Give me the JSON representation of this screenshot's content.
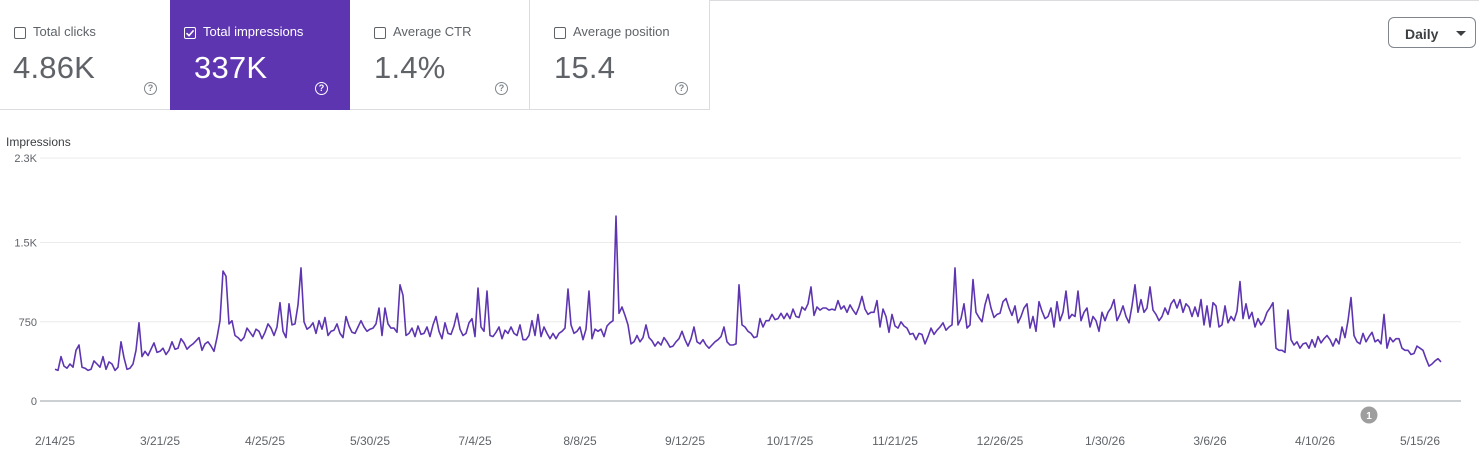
{
  "metrics": [
    {
      "label": "Total clicks",
      "value": "4.86K",
      "checked": false
    },
    {
      "label": "Total impressions",
      "value": "337K",
      "checked": true
    },
    {
      "label": "Average CTR",
      "value": "1.4%",
      "checked": false
    },
    {
      "label": "Average position",
      "value": "15.4",
      "checked": false
    }
  ],
  "help_glyph": "?",
  "granularity": {
    "label": "Daily"
  },
  "colors": {
    "accent": "#5e35b1",
    "line": "#5e35b1",
    "grid": "#ebebeb",
    "marker": "#9e9e9e"
  },
  "annotation": {
    "label": "1",
    "date": "4/28/26"
  },
  "chart_data": {
    "type": "line",
    "title": "",
    "ylabel": "Impressions",
    "xlabel": "",
    "ylim": [
      0,
      2300
    ],
    "yticks": [
      0,
      750,
      1500,
      2300
    ],
    "ytick_labels": [
      "0",
      "750",
      "1.5K",
      "2.3K"
    ],
    "x_tick_labels": [
      "2/14/25",
      "3/21/25",
      "4/25/25",
      "5/30/25",
      "7/4/25",
      "8/8/25",
      "9/12/25",
      "10/17/25",
      "11/21/25",
      "12/26/25",
      "1/30/26",
      "3/6/26",
      "4/10/26",
      "5/15/26"
    ],
    "grid": true,
    "x_start": "2025-02-14",
    "series": [
      {
        "name": "Impressions",
        "values": [
          300,
          290,
          420,
          330,
          310,
          350,
          320,
          480,
          530,
          320,
          310,
          290,
          300,
          380,
          350,
          320,
          420,
          300,
          370,
          350,
          290,
          320,
          560,
          410,
          300,
          310,
          350,
          480,
          740,
          420,
          470,
          430,
          490,
          550,
          460,
          470,
          500,
          440,
          480,
          560,
          490,
          500,
          590,
          550,
          490,
          520,
          540,
          570,
          600,
          480,
          540,
          560,
          520,
          470,
          600,
          760,
          1230,
          1180,
          730,
          760,
          620,
          600,
          570,
          600,
          690,
          650,
          610,
          680,
          660,
          590,
          650,
          730,
          690,
          620,
          700,
          930,
          660,
          600,
          920,
          720,
          730,
          910,
          1260,
          750,
          680,
          700,
          740,
          640,
          760,
          680,
          790,
          620,
          660,
          670,
          730,
          640,
          600,
          800,
          710,
          650,
          640,
          700,
          760,
          700,
          660,
          680,
          690,
          730,
          880,
          620,
          880,
          730,
          690,
          690,
          650,
          1100,
          1000,
          620,
          640,
          690,
          610,
          710,
          630,
          640,
          700,
          610,
          720,
          800,
          660,
          590,
          740,
          640,
          630,
          710,
          830,
          680,
          620,
          640,
          740,
          780,
          610,
          1070,
          700,
          660,
          1040,
          620,
          610,
          650,
          700,
          590,
          670,
          640,
          700,
          640,
          620,
          720,
          580,
          580,
          620,
          760,
          620,
          820,
          610,
          700,
          640,
          590,
          640,
          590,
          640,
          660,
          690,
          1060,
          720,
          640,
          660,
          700,
          580,
          680,
          1040,
          590,
          680,
          660,
          680,
          610,
          710,
          740,
          760,
          1750,
          830,
          890,
          810,
          720,
          540,
          560,
          620,
          560,
          600,
          720,
          600,
          570,
          520,
          560,
          530,
          600,
          560,
          510,
          520,
          560,
          590,
          660,
          580,
          520,
          590,
          700,
          560,
          540,
          580,
          530,
          500,
          530,
          560,
          580,
          610,
          700,
          560,
          530,
          530,
          540,
          1100,
          720,
          700,
          660,
          640,
          600,
          610,
          780,
          700,
          760,
          760,
          820,
          770,
          780,
          830,
          780,
          830,
          780,
          870,
          800,
          790,
          890,
          860,
          920,
          1080,
          810,
          890,
          860,
          880,
          880,
          860,
          870,
          860,
          950,
          870,
          900,
          840,
          910,
          860,
          820,
          890,
          990,
          870,
          820,
          840,
          840,
          950,
          700,
          870,
          800,
          650,
          820,
          710,
          690,
          750,
          710,
          690,
          630,
          640,
          580,
          640,
          630,
          540,
          610,
          690,
          630,
          670,
          700,
          740,
          670,
          700,
          720,
          1260,
          720,
          780,
          920,
          690,
          720,
          1150,
          840,
          790,
          750,
          910,
          1010,
          880,
          790,
          820,
          830,
          940,
          970,
          880,
          810,
          900,
          740,
          800,
          880,
          920,
          690,
          800,
          660,
          940,
          850,
          780,
          800,
          880,
          700,
          940,
          760,
          840,
          1040,
          780,
          820,
          800,
          1040,
          760,
          840,
          880,
          700,
          800,
          760,
          660,
          840,
          760,
          840,
          880,
          960,
          760,
          820,
          900,
          800,
          740,
          900,
          1100,
          840,
          960,
          840,
          880,
          1080,
          860,
          820,
          760,
          800,
          880,
          820,
          920,
          960,
          880,
          960,
          840,
          920,
          890,
          800,
          890,
          800,
          960,
          720,
          900,
          700,
          930,
          900,
          700,
          720,
          900,
          740,
          800,
          760,
          850,
          1130,
          780,
          920,
          780,
          840,
          700,
          780,
          720,
          760,
          840,
          880,
          930,
          500,
          480,
          480,
          460,
          860,
          580,
          530,
          560,
          500,
          540,
          550,
          500,
          580,
          510,
          610,
          550,
          590,
          620,
          580,
          520,
          590,
          540,
          700,
          600,
          760,
          980,
          620,
          560,
          540,
          640,
          560,
          610,
          650,
          560,
          580,
          540,
          820,
          500,
          600,
          560,
          590,
          590,
          500,
          480,
          480,
          440,
          450,
          520,
          500,
          480,
          400,
          330,
          350,
          380,
          400,
          370
        ]
      }
    ]
  }
}
